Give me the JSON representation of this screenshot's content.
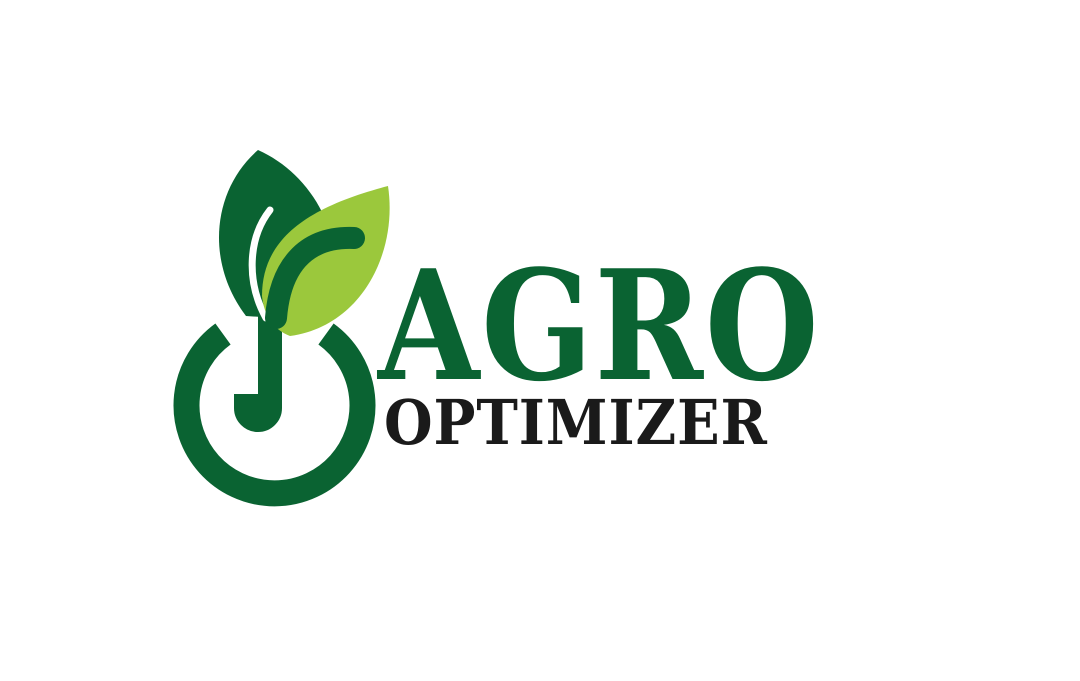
{
  "logo": {
    "icon": "leaf-sprout-power-icon",
    "brand_primary": "AGRO",
    "brand_secondary": "OPTIMIZER"
  },
  "colors": {
    "background": "#ffffff",
    "dark_green": "#0a6332",
    "light_green": "#9bc83c",
    "text_dark": "#1a1a1a"
  }
}
